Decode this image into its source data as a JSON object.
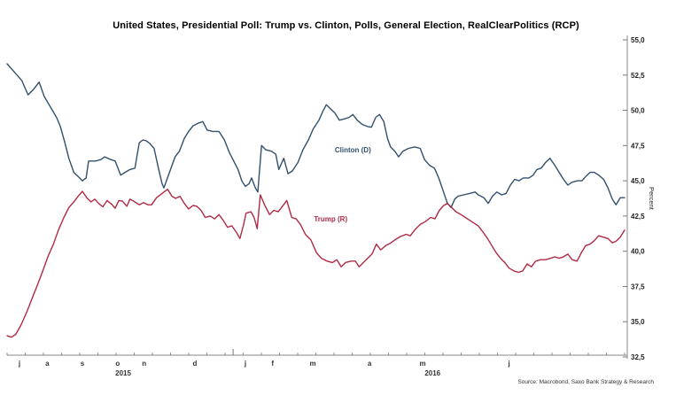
{
  "chart_data": {
    "type": "line",
    "title": "United States, Presidential Poll: Trump vs. Clinton, Polls, General Election, RealClearPolitics (RCP)",
    "source": "Source: Macrobond, Saxo Bank Strategy & Research",
    "grid": false,
    "legend_position": "inline-labels",
    "y_axis": {
      "title": "Percent",
      "side": "right",
      "min": 32.5,
      "max": 55.0,
      "step": 2.5,
      "decimal_separator": ",",
      "tick_labels": [
        "55,0",
        "52,5",
        "50,0",
        "47,5",
        "45,0",
        "42,5",
        "40,0",
        "37,5",
        "35,0",
        "32,5"
      ],
      "tick_values": [
        55.0,
        52.5,
        50.0,
        47.5,
        45.0,
        42.5,
        40.0,
        37.5,
        35.0,
        32.5
      ]
    },
    "x_axis": {
      "unit": "time",
      "range": "Jun 2015 - Oct 2016",
      "minor_tick_count": 35,
      "year_boundary_tick_f": 0.366,
      "month_labels": [
        {
          "label": "j",
          "f": 0.02
        },
        {
          "label": "a",
          "f": 0.065
        },
        {
          "label": "s",
          "f": 0.122
        },
        {
          "label": "o",
          "f": 0.179
        },
        {
          "label": "n",
          "f": 0.222
        },
        {
          "label": "d",
          "f": 0.304
        },
        {
          "label": "j",
          "f": 0.386
        },
        {
          "label": "f",
          "f": 0.43
        },
        {
          "label": "m",
          "f": 0.495
        },
        {
          "label": "a",
          "f": 0.587
        },
        {
          "label": "m",
          "f": 0.673
        },
        {
          "label": "j",
          "f": 0.813
        }
      ],
      "year_labels": [
        {
          "label": "2015",
          "f": 0.188
        },
        {
          "label": "2016",
          "f": 0.689
        }
      ]
    },
    "series": [
      {
        "name": "Clinton (D)",
        "color": "#31506e",
        "label_anchor": {
          "f": 0.56,
          "v": 47.2
        },
        "points": [
          [
            0.0,
            53.3
          ],
          [
            0.014,
            52.6
          ],
          [
            0.024,
            52.1
          ],
          [
            0.034,
            51.1
          ],
          [
            0.043,
            51.5
          ],
          [
            0.052,
            52.0
          ],
          [
            0.06,
            51.0
          ],
          [
            0.072,
            50.1
          ],
          [
            0.08,
            49.5
          ],
          [
            0.086,
            48.9
          ],
          [
            0.093,
            47.8
          ],
          [
            0.1,
            46.6
          ],
          [
            0.108,
            45.6
          ],
          [
            0.115,
            45.3
          ],
          [
            0.122,
            45.0
          ],
          [
            0.128,
            45.2
          ],
          [
            0.132,
            46.4
          ],
          [
            0.143,
            46.4
          ],
          [
            0.152,
            46.5
          ],
          [
            0.158,
            46.7
          ],
          [
            0.168,
            46.5
          ],
          [
            0.175,
            46.4
          ],
          [
            0.184,
            45.4
          ],
          [
            0.191,
            45.6
          ],
          [
            0.199,
            45.8
          ],
          [
            0.207,
            45.9
          ],
          [
            0.214,
            47.7
          ],
          [
            0.22,
            47.9
          ],
          [
            0.225,
            47.85
          ],
          [
            0.231,
            47.65
          ],
          [
            0.238,
            47.3
          ],
          [
            0.245,
            45.9
          ],
          [
            0.251,
            44.8
          ],
          [
            0.254,
            44.5
          ],
          [
            0.263,
            45.6
          ],
          [
            0.272,
            46.7
          ],
          [
            0.279,
            47.1
          ],
          [
            0.287,
            48.0
          ],
          [
            0.294,
            48.5
          ],
          [
            0.301,
            48.9
          ],
          [
            0.31,
            49.1
          ],
          [
            0.317,
            49.2
          ],
          [
            0.324,
            48.6
          ],
          [
            0.333,
            48.5
          ],
          [
            0.343,
            48.5
          ],
          [
            0.352,
            47.9
          ],
          [
            0.36,
            47.0
          ],
          [
            0.367,
            46.4
          ],
          [
            0.374,
            45.8
          ],
          [
            0.38,
            45.0
          ],
          [
            0.386,
            44.6
          ],
          [
            0.392,
            44.8
          ],
          [
            0.396,
            45.2
          ],
          [
            0.402,
            44.5
          ],
          [
            0.406,
            44.2
          ],
          [
            0.412,
            47.5
          ],
          [
            0.419,
            47.2
          ],
          [
            0.428,
            47.1
          ],
          [
            0.435,
            46.9
          ],
          [
            0.44,
            45.8
          ],
          [
            0.448,
            46.6
          ],
          [
            0.455,
            45.5
          ],
          [
            0.462,
            45.7
          ],
          [
            0.471,
            46.3
          ],
          [
            0.479,
            47.2
          ],
          [
            0.488,
            47.9
          ],
          [
            0.496,
            48.7
          ],
          [
            0.505,
            49.3
          ],
          [
            0.511,
            49.9
          ],
          [
            0.517,
            50.4
          ],
          [
            0.524,
            50.1
          ],
          [
            0.531,
            49.8
          ],
          [
            0.538,
            49.3
          ],
          [
            0.547,
            49.4
          ],
          [
            0.554,
            49.5
          ],
          [
            0.56,
            49.7
          ],
          [
            0.567,
            49.3
          ],
          [
            0.575,
            49.0
          ],
          [
            0.584,
            48.85
          ],
          [
            0.59,
            48.8
          ],
          [
            0.597,
            49.5
          ],
          [
            0.603,
            49.7
          ],
          [
            0.61,
            49.2
          ],
          [
            0.616,
            48.0
          ],
          [
            0.621,
            47.4
          ],
          [
            0.628,
            47.1
          ],
          [
            0.634,
            46.7
          ],
          [
            0.641,
            47.1
          ],
          [
            0.65,
            47.3
          ],
          [
            0.66,
            47.4
          ],
          [
            0.669,
            47.3
          ],
          [
            0.676,
            46.5
          ],
          [
            0.684,
            46.1
          ],
          [
            0.692,
            45.9
          ],
          [
            0.699,
            45.2
          ],
          [
            0.706,
            44.3
          ],
          [
            0.713,
            43.4
          ],
          [
            0.719,
            43.1
          ],
          [
            0.725,
            43.7
          ],
          [
            0.73,
            43.9
          ],
          [
            0.739,
            44.0
          ],
          [
            0.749,
            44.1
          ],
          [
            0.758,
            44.2
          ],
          [
            0.763,
            44.0
          ],
          [
            0.772,
            43.8
          ],
          [
            0.779,
            43.4
          ],
          [
            0.786,
            43.9
          ],
          [
            0.793,
            44.2
          ],
          [
            0.801,
            44.0
          ],
          [
            0.808,
            44.1
          ],
          [
            0.815,
            44.7
          ],
          [
            0.822,
            45.1
          ],
          [
            0.829,
            45.0
          ],
          [
            0.836,
            45.2
          ],
          [
            0.845,
            45.2
          ],
          [
            0.852,
            45.4
          ],
          [
            0.858,
            45.8
          ],
          [
            0.865,
            45.9
          ],
          [
            0.872,
            46.3
          ],
          [
            0.879,
            46.6
          ],
          [
            0.887,
            46.1
          ],
          [
            0.894,
            45.6
          ],
          [
            0.901,
            45.1
          ],
          [
            0.908,
            44.7
          ],
          [
            0.915,
            44.9
          ],
          [
            0.924,
            45.0
          ],
          [
            0.931,
            45.0
          ],
          [
            0.937,
            45.3
          ],
          [
            0.944,
            45.6
          ],
          [
            0.951,
            45.6
          ],
          [
            0.958,
            45.4
          ],
          [
            0.966,
            45.1
          ],
          [
            0.973,
            44.5
          ],
          [
            0.98,
            43.7
          ],
          [
            0.986,
            43.3
          ],
          [
            0.993,
            43.8
          ],
          [
            1.0,
            43.8
          ]
        ]
      },
      {
        "name": "Trump (R)",
        "color": "#b02a45",
        "label_anchor": {
          "f": 0.524,
          "v": 42.3
        },
        "points": [
          [
            0.0,
            34.0
          ],
          [
            0.007,
            33.9
          ],
          [
            0.014,
            34.1
          ],
          [
            0.023,
            34.8
          ],
          [
            0.032,
            35.7
          ],
          [
            0.04,
            36.6
          ],
          [
            0.049,
            37.6
          ],
          [
            0.057,
            38.5
          ],
          [
            0.066,
            39.6
          ],
          [
            0.075,
            40.5
          ],
          [
            0.083,
            41.5
          ],
          [
            0.092,
            42.4
          ],
          [
            0.1,
            43.1
          ],
          [
            0.108,
            43.5
          ],
          [
            0.115,
            43.9
          ],
          [
            0.122,
            44.25
          ],
          [
            0.129,
            43.8
          ],
          [
            0.136,
            43.5
          ],
          [
            0.142,
            43.7
          ],
          [
            0.148,
            43.4
          ],
          [
            0.155,
            43.15
          ],
          [
            0.162,
            43.6
          ],
          [
            0.169,
            43.35
          ],
          [
            0.175,
            43.05
          ],
          [
            0.181,
            43.6
          ],
          [
            0.187,
            43.55
          ],
          [
            0.194,
            43.2
          ],
          [
            0.199,
            43.7
          ],
          [
            0.207,
            43.5
          ],
          [
            0.214,
            43.3
          ],
          [
            0.221,
            43.45
          ],
          [
            0.228,
            43.3
          ],
          [
            0.234,
            43.3
          ],
          [
            0.242,
            43.8
          ],
          [
            0.251,
            44.1
          ],
          [
            0.26,
            44.4
          ],
          [
            0.267,
            43.9
          ],
          [
            0.273,
            43.75
          ],
          [
            0.28,
            43.9
          ],
          [
            0.287,
            43.4
          ],
          [
            0.294,
            43.0
          ],
          [
            0.301,
            43.25
          ],
          [
            0.307,
            43.2
          ],
          [
            0.314,
            42.9
          ],
          [
            0.321,
            42.4
          ],
          [
            0.329,
            42.5
          ],
          [
            0.336,
            42.3
          ],
          [
            0.343,
            42.6
          ],
          [
            0.35,
            42.2
          ],
          [
            0.357,
            41.7
          ],
          [
            0.364,
            41.8
          ],
          [
            0.372,
            41.3
          ],
          [
            0.377,
            40.9
          ],
          [
            0.383,
            41.9
          ],
          [
            0.387,
            42.7
          ],
          [
            0.395,
            42.8
          ],
          [
            0.4,
            42.4
          ],
          [
            0.405,
            41.6
          ],
          [
            0.41,
            44.0
          ],
          [
            0.417,
            43.3
          ],
          [
            0.425,
            42.6
          ],
          [
            0.432,
            42.9
          ],
          [
            0.439,
            42.8
          ],
          [
            0.446,
            43.2
          ],
          [
            0.453,
            43.6
          ],
          [
            0.461,
            42.4
          ],
          [
            0.468,
            42.3
          ],
          [
            0.475,
            41.9
          ],
          [
            0.483,
            41.2
          ],
          [
            0.492,
            40.8
          ],
          [
            0.501,
            39.9
          ],
          [
            0.509,
            39.5
          ],
          [
            0.518,
            39.3
          ],
          [
            0.527,
            39.2
          ],
          [
            0.534,
            39.4
          ],
          [
            0.541,
            38.9
          ],
          [
            0.548,
            39.2
          ],
          [
            0.557,
            39.3
          ],
          [
            0.564,
            39.3
          ],
          [
            0.57,
            38.9
          ],
          [
            0.577,
            39.2
          ],
          [
            0.584,
            39.5
          ],
          [
            0.591,
            39.8
          ],
          [
            0.598,
            40.5
          ],
          [
            0.605,
            40.1
          ],
          [
            0.613,
            40.4
          ],
          [
            0.62,
            40.55
          ],
          [
            0.628,
            40.8
          ],
          [
            0.637,
            41.05
          ],
          [
            0.646,
            41.2
          ],
          [
            0.653,
            41.1
          ],
          [
            0.66,
            41.5
          ],
          [
            0.669,
            41.9
          ],
          [
            0.677,
            42.1
          ],
          [
            0.686,
            42.4
          ],
          [
            0.693,
            42.3
          ],
          [
            0.7,
            42.9
          ],
          [
            0.707,
            43.25
          ],
          [
            0.713,
            43.4
          ],
          [
            0.72,
            43.1
          ],
          [
            0.727,
            42.8
          ],
          [
            0.735,
            42.6
          ],
          [
            0.742,
            42.4
          ],
          [
            0.749,
            42.2
          ],
          [
            0.756,
            42.0
          ],
          [
            0.763,
            41.8
          ],
          [
            0.77,
            41.4
          ],
          [
            0.778,
            40.9
          ],
          [
            0.785,
            40.4
          ],
          [
            0.792,
            39.9
          ],
          [
            0.799,
            39.5
          ],
          [
            0.806,
            39.2
          ],
          [
            0.813,
            38.8
          ],
          [
            0.821,
            38.6
          ],
          [
            0.828,
            38.5
          ],
          [
            0.835,
            38.6
          ],
          [
            0.842,
            39.1
          ],
          [
            0.849,
            38.9
          ],
          [
            0.856,
            39.3
          ],
          [
            0.864,
            39.4
          ],
          [
            0.872,
            39.4
          ],
          [
            0.88,
            39.5
          ],
          [
            0.887,
            39.6
          ],
          [
            0.894,
            39.5
          ],
          [
            0.901,
            39.6
          ],
          [
            0.908,
            39.8
          ],
          [
            0.915,
            39.4
          ],
          [
            0.923,
            39.3
          ],
          [
            0.93,
            39.9
          ],
          [
            0.937,
            40.4
          ],
          [
            0.944,
            40.5
          ],
          [
            0.951,
            40.75
          ],
          [
            0.958,
            41.1
          ],
          [
            0.966,
            41.0
          ],
          [
            0.973,
            40.9
          ],
          [
            0.98,
            40.6
          ],
          [
            0.986,
            40.7
          ],
          [
            0.993,
            41.0
          ],
          [
            1.0,
            41.5
          ]
        ]
      }
    ],
    "colors": {
      "axis": "#8a8a8a",
      "tick": "#777777",
      "tick_text": "#222222",
      "title_text": "#000000"
    }
  }
}
